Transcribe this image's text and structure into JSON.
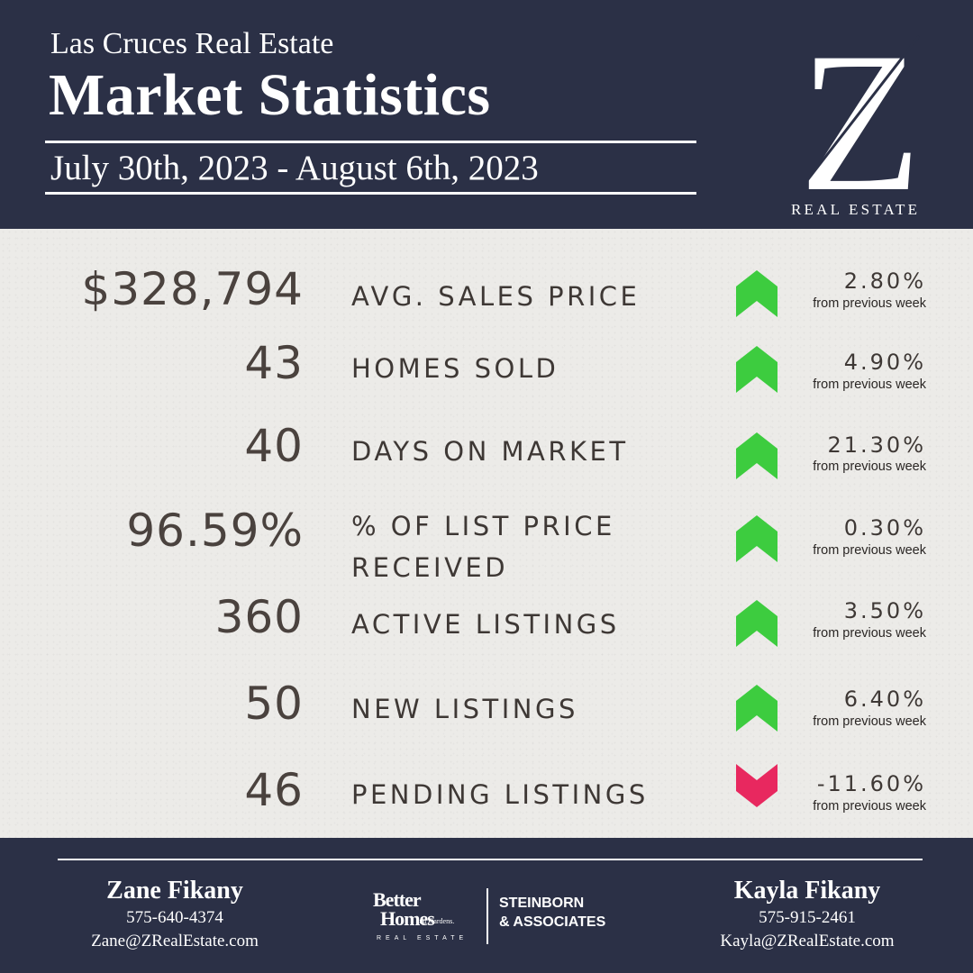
{
  "header": {
    "subtitle": "Las Cruces Real Estate",
    "title": "Market Statistics",
    "date_range": "July 30th, 2023 - August 6th, 2023",
    "logo_letter": "Z",
    "logo_text": "REAL ESTATE"
  },
  "stats": [
    {
      "value": "$328,794",
      "label": "AVG. SALES PRICE",
      "change": "2.80%",
      "note": "from previous week",
      "direction": "up"
    },
    {
      "value": "43",
      "label": "HOMES SOLD",
      "change": "4.90%",
      "note": "from previous week",
      "direction": "up"
    },
    {
      "value": "40",
      "label": "DAYS ON MARKET",
      "change": "21.30%",
      "note": "from previous week",
      "direction": "up"
    },
    {
      "value": "96.59%",
      "label_line1": "% OF LIST PRICE",
      "label_line2": "RECEIVED",
      "change": "0.30%",
      "note": "from previous week",
      "direction": "up"
    },
    {
      "value": "360",
      "label": "ACTIVE LISTINGS",
      "change": "3.50%",
      "note": "from previous week",
      "direction": "up"
    },
    {
      "value": "50",
      "label": "NEW LISTINGS",
      "change": "6.40%",
      "note": "from previous week",
      "direction": "up"
    },
    {
      "value": "46",
      "label": "PENDING LISTINGS",
      "change": "-11.60%",
      "note": "from previous week",
      "direction": "down"
    }
  ],
  "colors": {
    "navy": "#2b3046",
    "up": "#3dcc3f",
    "down": "#e8285f",
    "text": "#3e3835"
  },
  "footer": {
    "agent_left": {
      "name": "Zane Fikany",
      "phone": "575-640-4374",
      "email": "Zane@ZRealEstate.com"
    },
    "agent_right": {
      "name": "Kayla Fikany",
      "phone": "575-915-2461",
      "email": "Kayla@ZRealEstate.com"
    },
    "brand": {
      "line1": "Better",
      "line2": "Homes",
      "line3": "and Gardens.",
      "line4": "REAL ESTATE",
      "partner_line1": "STEINBORN",
      "partner_line2": "& ASSOCIATES"
    }
  }
}
